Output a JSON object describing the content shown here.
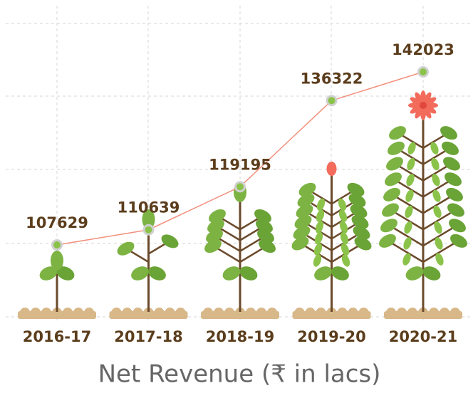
{
  "chart_data": {
    "type": "line",
    "title": "Net Revenue (₹ in lacs)",
    "categories": [
      "2016-17",
      "2017-18",
      "2018-19",
      "2019-20",
      "2020-21"
    ],
    "values": [
      107629,
      110639,
      119195,
      136322,
      142023
    ],
    "color": "#f3907c",
    "marker_color": "#8bc34a"
  }
}
